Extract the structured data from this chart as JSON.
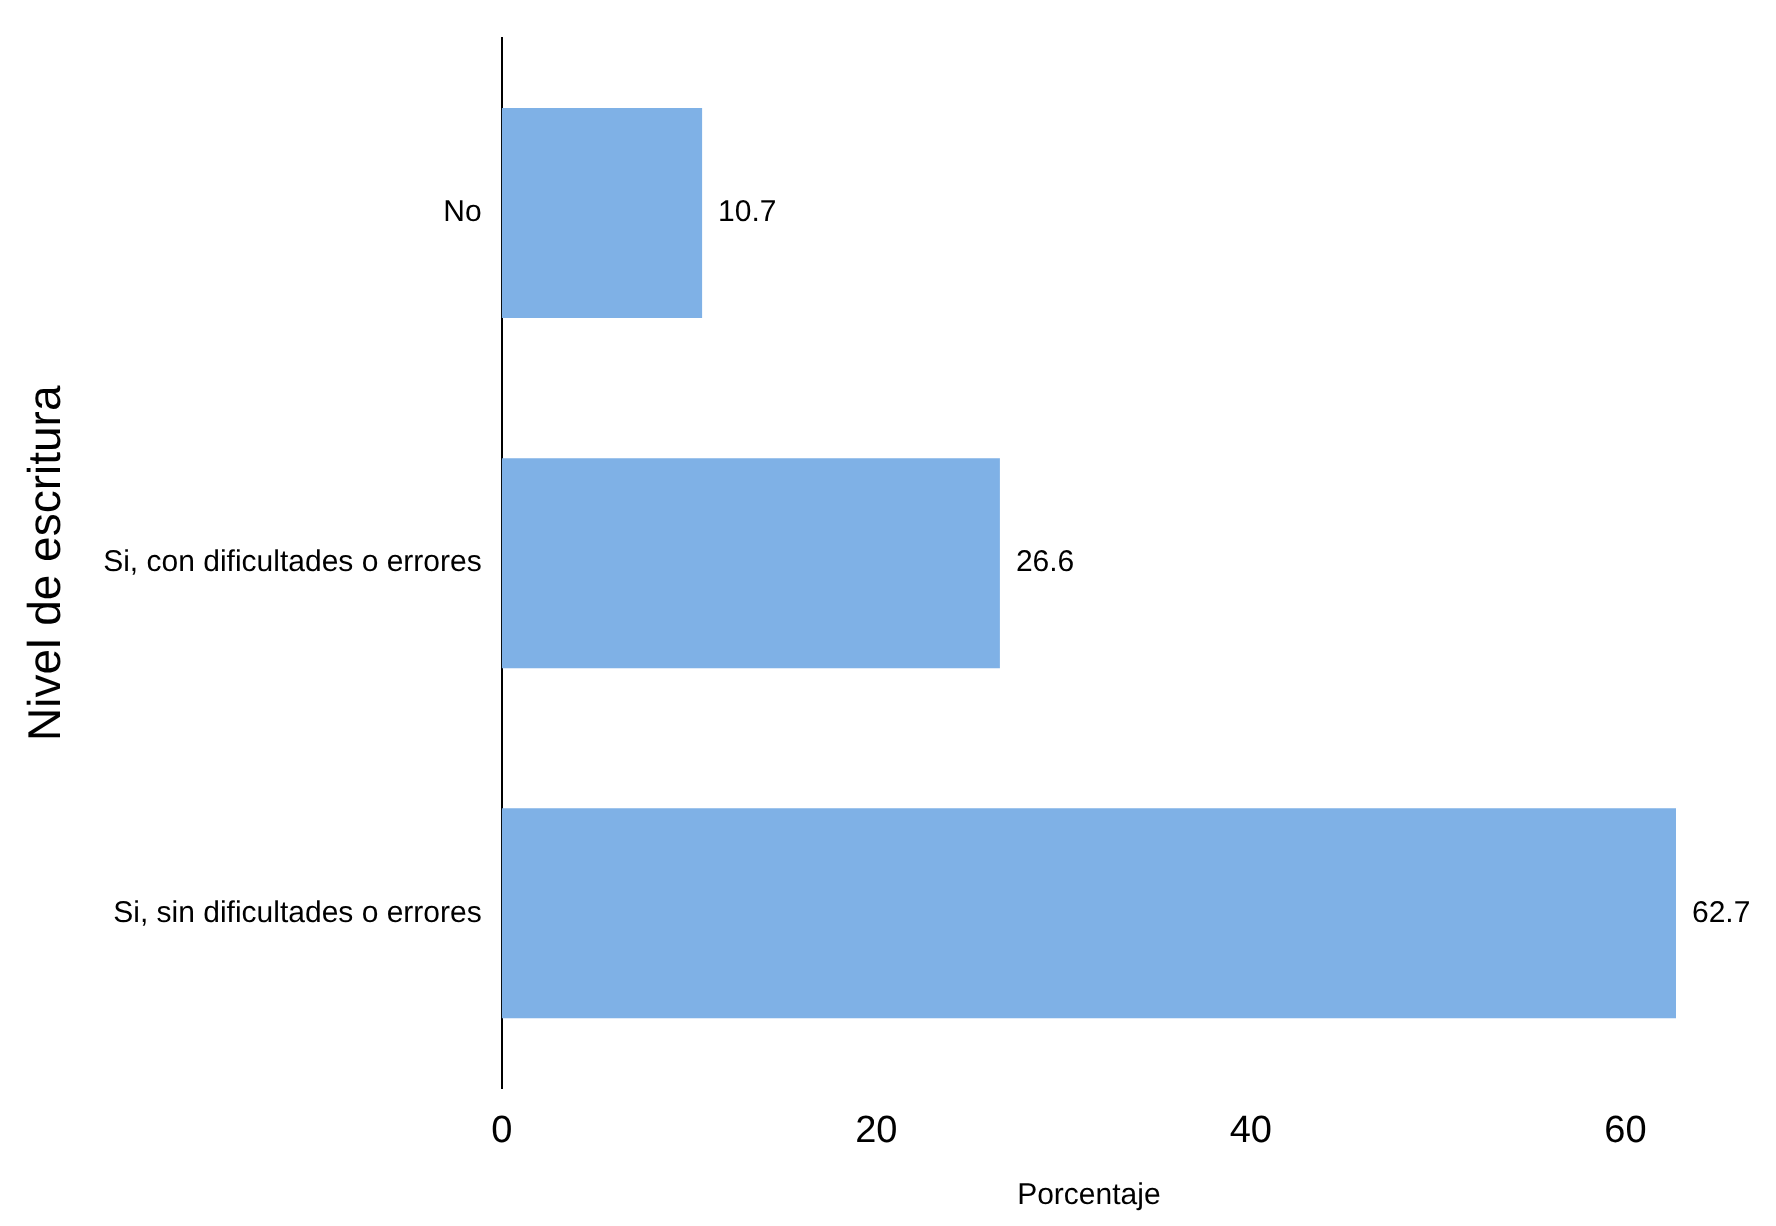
{
  "chart_data": {
    "type": "bar",
    "orientation": "horizontal",
    "xlabel": "Porcentaje",
    "ylabel": "Nivel de escritura",
    "categories": [
      "No",
      "Si, con dificultades o errores",
      "Si, sin dificultades o errores"
    ],
    "values": [
      10.7,
      26.6,
      62.7
    ],
    "color": "#7fb1e6",
    "xlim": [
      0,
      62.7
    ],
    "xticks": [
      0,
      20,
      40,
      60
    ],
    "data_labels": true,
    "grid": false,
    "legend": false
  }
}
